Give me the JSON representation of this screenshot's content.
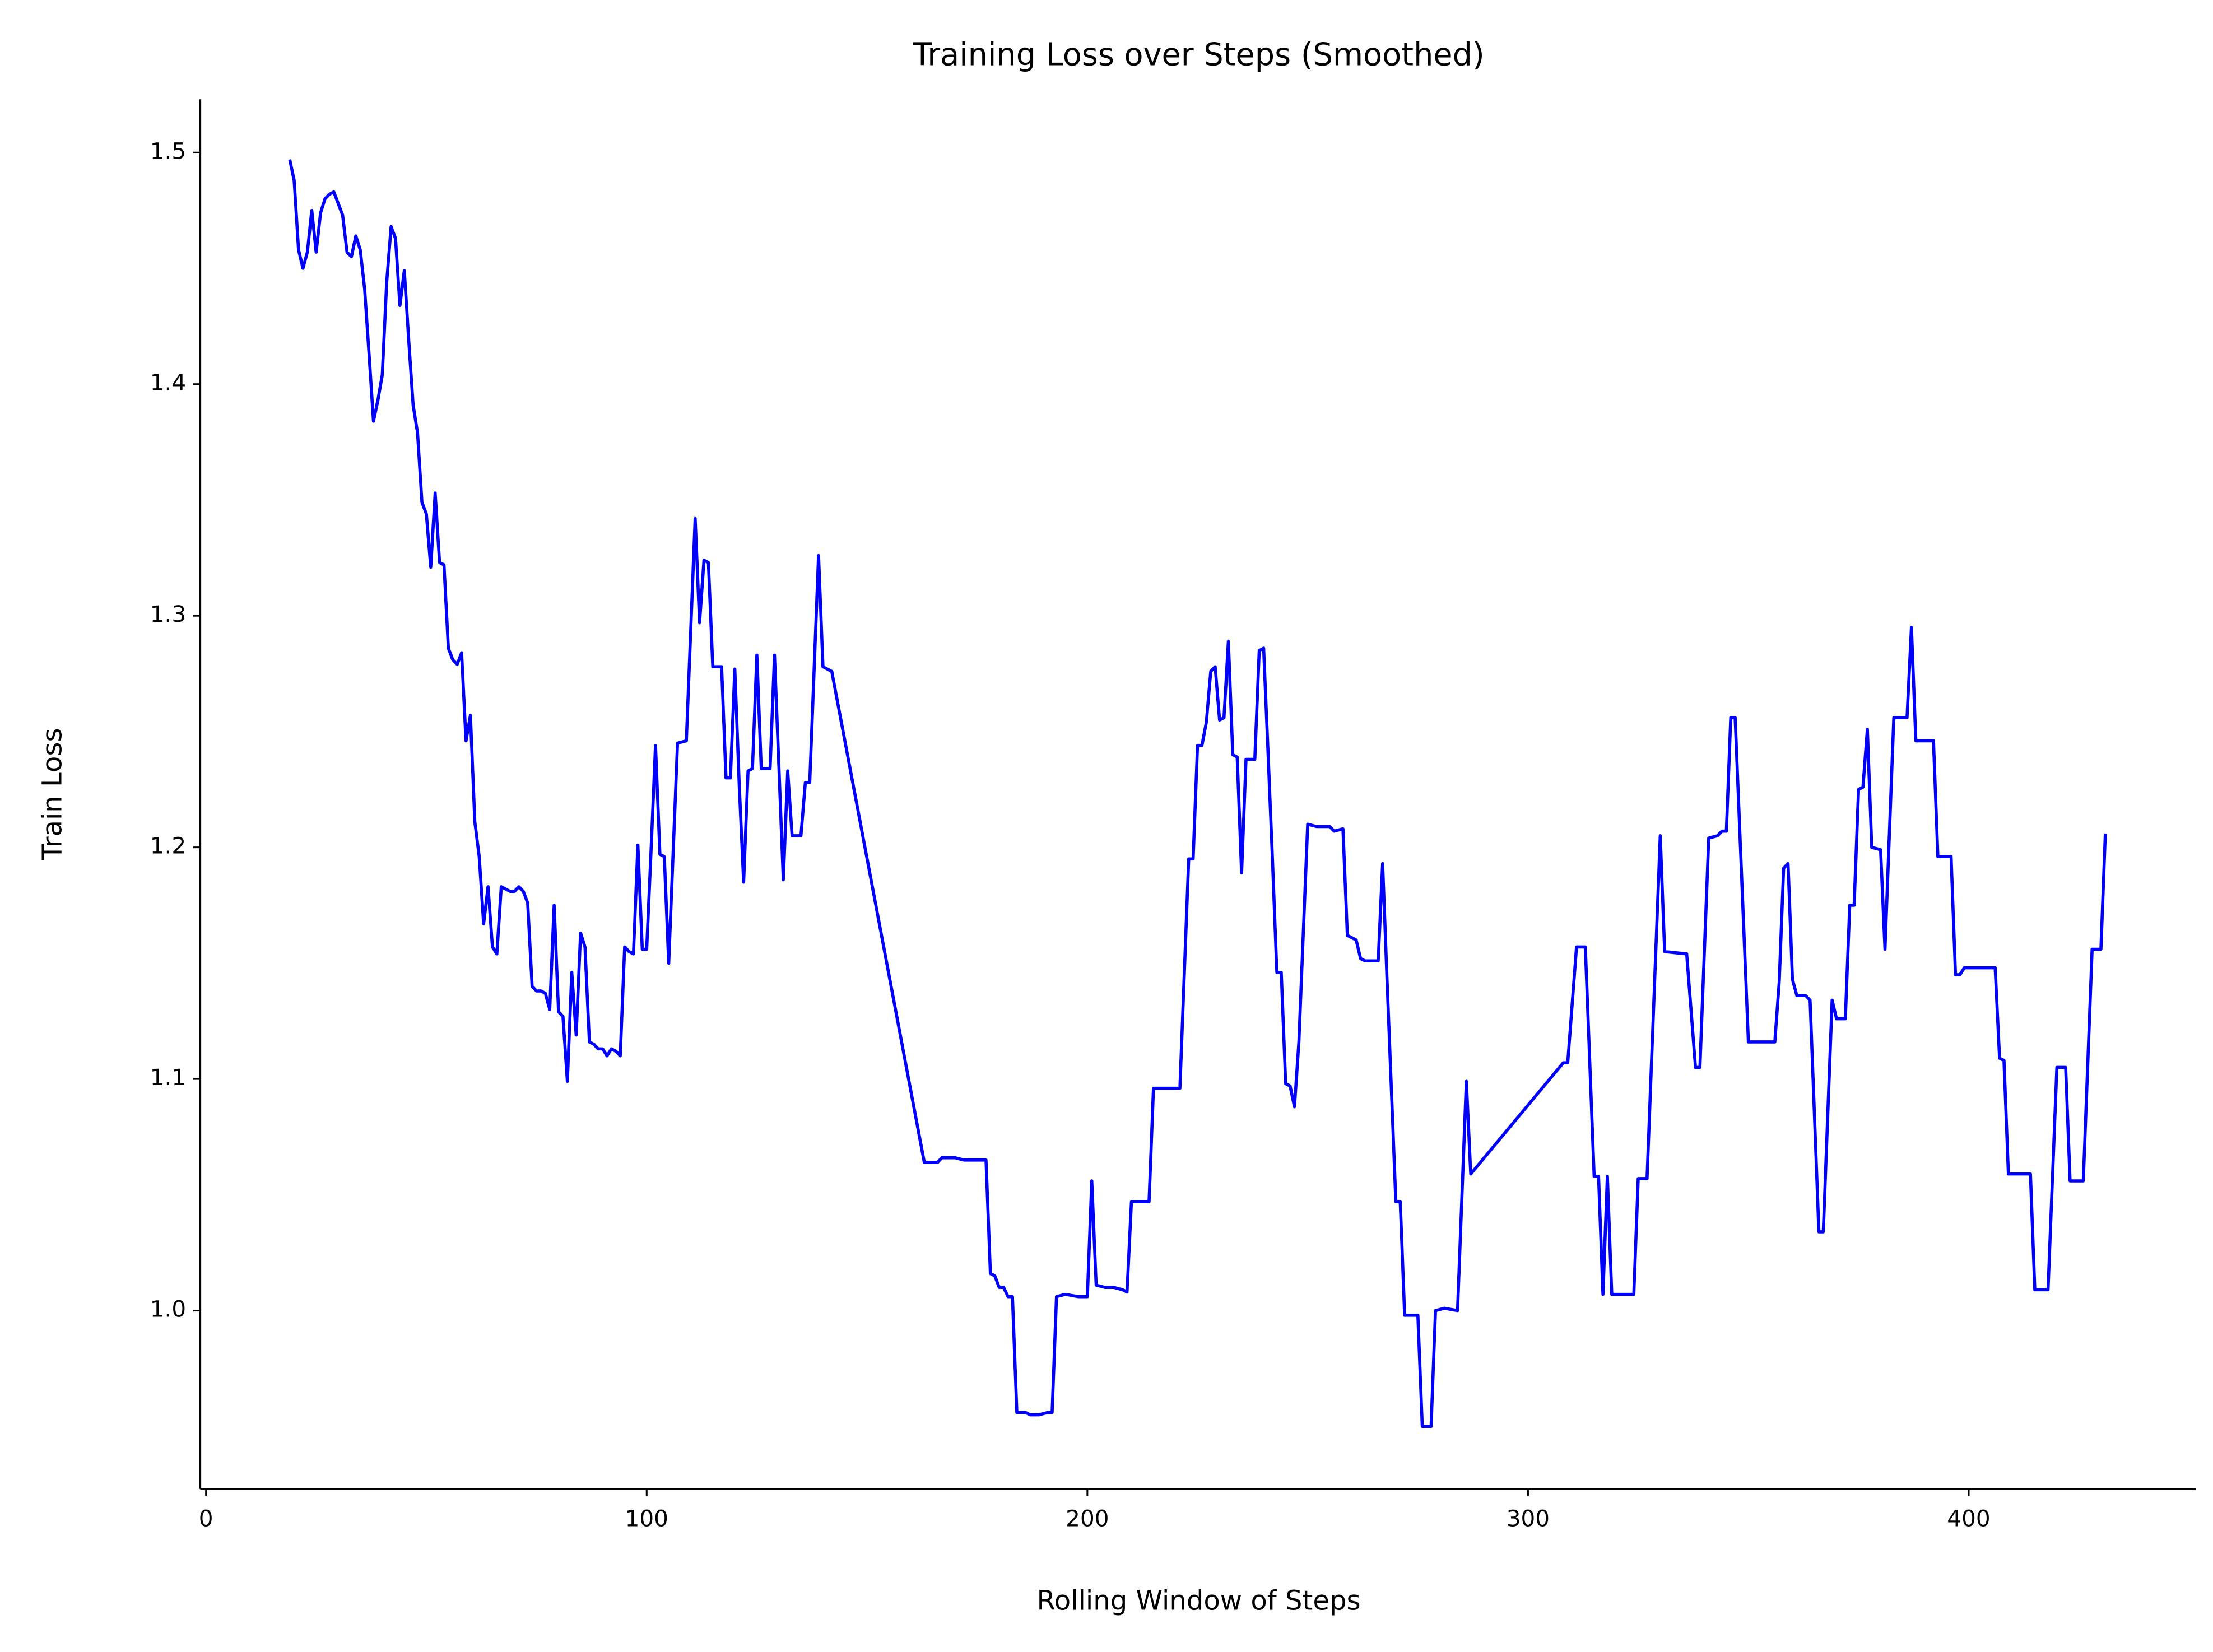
{
  "chart_data": {
    "type": "line",
    "title": "Training Loss over Steps (Smoothed)",
    "x_label": "Rolling Window of Steps",
    "y_label": "Train Loss",
    "xlim": [
      -1.3,
      451.5
    ],
    "ylim": [
      0.923,
      1.523
    ],
    "xticks": [
      0,
      100,
      200,
      300,
      400
    ],
    "yticks": [
      {
        "value": 1,
        "label": "1.0"
      },
      1.1,
      1.2,
      1.3,
      1.4,
      1.5
    ],
    "grid": false,
    "series": [
      {
        "name": "Train Loss",
        "color": "#0000ff",
        "x": [
          19,
          20,
          21,
          22,
          23,
          24,
          25,
          26,
          27,
          28,
          29,
          30,
          31,
          32,
          33,
          34,
          35,
          36,
          37,
          38,
          39,
          40,
          41,
          42,
          43,
          44,
          45,
          46,
          47,
          48,
          49,
          50,
          51,
          52,
          53,
          54,
          55,
          56,
          57,
          58,
          59,
          60,
          61,
          62,
          63,
          64,
          65,
          66,
          67,
          68,
          69,
          70,
          71,
          72,
          73,
          74,
          75,
          76,
          77,
          78,
          79,
          80,
          81,
          82,
          83,
          84,
          85,
          86,
          87,
          88,
          89,
          90,
          91,
          92,
          93,
          94,
          95,
          96,
          97,
          98,
          99,
          100,
          101,
          102,
          103,
          104,
          105,
          107,
          109,
          111,
          112,
          113,
          114,
          115,
          117,
          118,
          119,
          120,
          121,
          122,
          123,
          124,
          125,
          126,
          128,
          129,
          130,
          131,
          132,
          133,
          135,
          136,
          137,
          139,
          140,
          142,
          163,
          166,
          167,
          170,
          172,
          175,
          177,
          178,
          179,
          180,
          181,
          182,
          183,
          184,
          186,
          187,
          189,
          191,
          192,
          193,
          195,
          198,
          200,
          201,
          202,
          204,
          206,
          208,
          209,
          210,
          213,
          214,
          215,
          221,
          223,
          224,
          225,
          226,
          227,
          228,
          229,
          230,
          231,
          232,
          233,
          234,
          235,
          236,
          238,
          239,
          240,
          241,
          242,
          243,
          244,
          245,
          246,
          247,
          248,
          250,
          252,
          255,
          256,
          258,
          259,
          261,
          262,
          263,
          265,
          266,
          267,
          268,
          270,
          271,
          272,
          275,
          276,
          278,
          279,
          281,
          284,
          286,
          287,
          308,
          309,
          311,
          313,
          315,
          316,
          317,
          318,
          319,
          324,
          325,
          327,
          330,
          331,
          336,
          338,
          339,
          341,
          343,
          344,
          345,
          346,
          347,
          350,
          356,
          357,
          358,
          359,
          360,
          361,
          363,
          364,
          366,
          367,
          369,
          370,
          372,
          373,
          374,
          375,
          376,
          377,
          378,
          380,
          381,
          383,
          386,
          387,
          388,
          392,
          393,
          396,
          397,
          398,
          399,
          406,
          407,
          408,
          409,
          414,
          415,
          418,
          420,
          422,
          423,
          426,
          428,
          430,
          431
        ],
        "values": [
          1.497,
          1.488,
          1.458,
          1.45,
          1.457,
          1.475,
          1.457,
          1.474,
          1.48,
          1.482,
          1.483,
          1.478,
          1.473,
          1.457,
          1.455,
          1.464,
          1.458,
          1.441,
          1.413,
          1.384,
          1.393,
          1.404,
          1.444,
          1.468,
          1.463,
          1.434,
          1.449,
          1.419,
          1.391,
          1.379,
          1.349,
          1.344,
          1.321,
          1.353,
          1.323,
          1.322,
          1.286,
          1.281,
          1.279,
          1.284,
          1.246,
          1.257,
          1.211,
          1.196,
          1.167,
          1.183,
          1.157,
          1.154,
          1.183,
          1.182,
          1.181,
          1.181,
          1.183,
          1.181,
          1.176,
          1.14,
          1.138,
          1.138,
          1.137,
          1.13,
          1.175,
          1.129,
          1.127,
          1.099,
          1.146,
          1.119,
          1.163,
          1.157,
          1.116,
          1.115,
          1.113,
          1.113,
          1.11,
          1.113,
          1.112,
          1.11,
          1.157,
          1.155,
          1.154,
          1.201,
          1.156,
          1.156,
          1.199,
          1.244,
          1.197,
          1.196,
          1.15,
          1.245,
          1.246,
          1.342,
          1.297,
          1.324,
          1.323,
          1.278,
          1.278,
          1.23,
          1.23,
          1.277,
          1.227,
          1.185,
          1.233,
          1.234,
          1.283,
          1.234,
          1.234,
          1.283,
          1.235,
          1.186,
          1.233,
          1.205,
          1.205,
          1.228,
          1.228,
          1.326,
          1.278,
          1.276,
          1.064,
          1.064,
          1.066,
          1.066,
          1.065,
          1.065,
          1.065,
          1.016,
          1.015,
          1.01,
          1.01,
          1.006,
          1.006,
          0.956,
          0.956,
          0.955,
          0.955,
          0.956,
          0.956,
          1.006,
          1.007,
          1.006,
          1.006,
          1.056,
          1.011,
          1.01,
          1.01,
          1.009,
          1.008,
          1.047,
          1.047,
          1.047,
          1.096,
          1.096,
          1.195,
          1.195,
          1.244,
          1.244,
          1.254,
          1.276,
          1.278,
          1.255,
          1.256,
          1.289,
          1.24,
          1.239,
          1.189,
          1.238,
          1.238,
          1.285,
          1.286,
          1.241,
          1.195,
          1.146,
          1.146,
          1.098,
          1.097,
          1.088,
          1.116,
          1.21,
          1.209,
          1.209,
          1.207,
          1.208,
          1.162,
          1.16,
          1.152,
          1.151,
          1.151,
          1.151,
          1.193,
          1.143,
          1.047,
          1.047,
          0.998,
          0.998,
          0.95,
          0.95,
          1.0,
          1.001,
          1.0,
          1.099,
          1.059,
          1.107,
          1.107,
          1.157,
          1.157,
          1.058,
          1.058,
          1.007,
          1.058,
          1.007,
          1.007,
          1.057,
          1.057,
          1.205,
          1.155,
          1.154,
          1.105,
          1.105,
          1.204,
          1.205,
          1.207,
          1.207,
          1.256,
          1.256,
          1.116,
          1.116,
          1.142,
          1.191,
          1.193,
          1.143,
          1.136,
          1.136,
          1.134,
          1.034,
          1.034,
          1.134,
          1.126,
          1.126,
          1.175,
          1.175,
          1.225,
          1.226,
          1.251,
          1.2,
          1.199,
          1.156,
          1.256,
          1.256,
          1.295,
          1.246,
          1.246,
          1.196,
          1.196,
          1.145,
          1.145,
          1.148,
          1.148,
          1.109,
          1.108,
          1.059,
          1.059,
          1.009,
          1.009,
          1.105,
          1.105,
          1.056,
          1.056,
          1.156,
          1.156,
          1.206
        ]
      }
    ]
  }
}
